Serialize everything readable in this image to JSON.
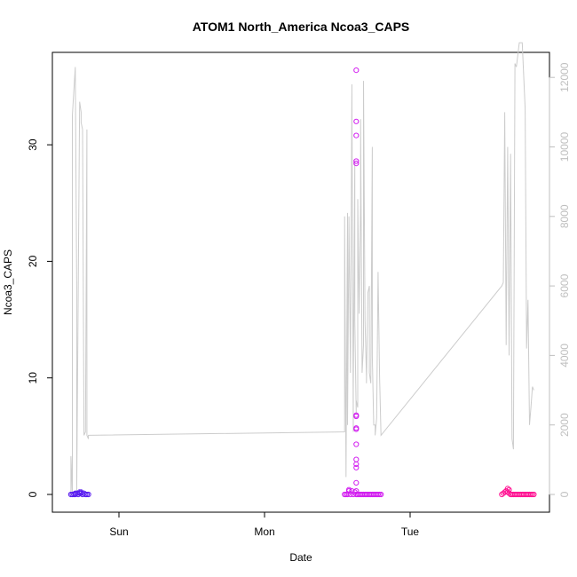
{
  "chart_data": {
    "type": "scatter",
    "title": "ATOM1 North_America Ncoa3_CAPS",
    "xlabel": "Date",
    "ylabel": "Ncoa3_CAPS",
    "x_ticks": [
      "Sun",
      "Mon",
      "Tue"
    ],
    "x_range_days": [
      -0.45,
      2.97
    ],
    "ylim_left": [
      -1.5,
      38.5
    ],
    "yticks_left": [
      0,
      10,
      20,
      30
    ],
    "ylim_right": [
      -420,
      12850
    ],
    "yticks_right": [
      0,
      2000,
      4000,
      6000,
      8000,
      10000,
      12000
    ],
    "grid": false,
    "legend": "none",
    "colors": {
      "line": "#cccccc",
      "right_axis": "#bfbfbf",
      "cluster1": "#5a1ef0",
      "cluster2": "#d21ef0",
      "cluster3": "#ff1493"
    },
    "series": [
      {
        "kind": "secondary_line",
        "axis": "right",
        "x": [
          -0.33,
          -0.33,
          -0.32,
          -0.32,
          -0.3,
          -0.29,
          -0.29,
          -0.27,
          -0.26,
          -0.26,
          -0.25,
          -0.24,
          -0.23,
          -0.22,
          -0.22,
          -0.21,
          -0.21,
          1.55,
          1.55,
          1.56,
          1.57,
          1.57,
          1.58,
          1.58,
          1.59,
          1.6,
          1.6,
          1.61,
          1.61,
          1.62,
          1.62,
          1.63,
          1.63,
          1.64,
          1.64,
          1.65,
          1.66,
          1.66,
          1.67,
          1.68,
          1.68,
          1.69,
          1.7,
          1.7,
          1.71,
          1.72,
          1.72,
          1.73,
          1.74,
          1.74,
          1.75,
          1.76,
          1.76,
          1.77,
          1.78,
          1.79,
          1.8,
          2.63,
          2.64,
          2.65,
          2.66,
          2.67,
          2.68,
          2.69,
          2.7,
          2.71,
          2.72,
          2.73,
          2.75,
          2.77,
          2.79,
          2.8,
          2.81,
          2.82,
          2.83,
          2.84,
          2.85
        ],
        "y": [
          0,
          1100,
          0,
          10900,
          12300,
          6000,
          0,
          11300,
          11000,
          10700,
          10500,
          1700,
          1800,
          10500,
          1700,
          1600,
          1700,
          1800,
          8000,
          500,
          8100,
          2000,
          7900,
          8000,
          3500,
          11600,
          11800,
          1800,
          3000,
          9600,
          5000,
          2300,
          2700,
          2500,
          8500,
          5200,
          8300,
          10800,
          3500,
          4300,
          11900,
          5000,
          3400,
          3200,
          5800,
          6000,
          3500,
          3200,
          10000,
          4000,
          2000,
          2000,
          1700,
          2200,
          6400,
          3400,
          1700,
          6000,
          6100,
          11000,
          4300,
          10000,
          4000,
          9800,
          1600,
          1300,
          12400,
          12300,
          13000,
          13000,
          11100,
          4200,
          5600,
          2000,
          2500,
          3100,
          3000
        ]
      },
      {
        "name": "cluster1",
        "x": [
          -0.33,
          -0.32,
          -0.31,
          -0.3,
          -0.29,
          -0.28,
          -0.27,
          -0.26,
          -0.25,
          -0.24,
          -0.23,
          -0.22,
          -0.21,
          -0.27,
          -0.26,
          -0.3
        ],
        "y": [
          0,
          0,
          0,
          0.1,
          0.1,
          0,
          0.2,
          0.1,
          0,
          0.1,
          0,
          0,
          0,
          0.1,
          0.2,
          0
        ]
      },
      {
        "name": "cluster2",
        "x": [
          1.55,
          1.56,
          1.57,
          1.58,
          1.59,
          1.6,
          1.61,
          1.62,
          1.63,
          1.64,
          1.65,
          1.66,
          1.67,
          1.68,
          1.69,
          1.7,
          1.71,
          1.72,
          1.73,
          1.74,
          1.75,
          1.76,
          1.77,
          1.78,
          1.79,
          1.8,
          1.58,
          1.63,
          1.63,
          1.63,
          1.63,
          1.63,
          1.63,
          1.63,
          1.63,
          1.63,
          1.63,
          1.63,
          1.63,
          1.63,
          1.63,
          1.63
        ],
        "y": [
          0,
          0,
          0,
          0.4,
          0,
          0.3,
          0,
          0.2,
          0,
          0,
          0,
          0,
          0,
          0,
          0,
          0,
          0,
          0,
          0,
          0,
          0,
          0,
          0,
          0,
          0,
          0,
          0.3,
          36.4,
          32,
          30.8,
          28.6,
          28.4,
          6.8,
          6.7,
          5.7,
          5.6,
          4.3,
          3.0,
          2.6,
          2.3,
          1.0,
          0.3
        ]
      },
      {
        "name": "cluster3",
        "x": [
          2.63,
          2.64,
          2.65,
          2.66,
          2.67,
          2.68,
          2.69,
          2.7,
          2.71,
          2.72,
          2.73,
          2.74,
          2.75,
          2.76,
          2.77,
          2.78,
          2.79,
          2.8,
          2.81,
          2.82,
          2.83,
          2.84,
          2.85,
          2.67,
          2.68
        ],
        "y": [
          0,
          0.1,
          0.2,
          0.3,
          0.2,
          0.1,
          0,
          0,
          0,
          0,
          0,
          0,
          0,
          0,
          0,
          0,
          0,
          0,
          0,
          0,
          0,
          0,
          0,
          0.5,
          0.4
        ]
      }
    ]
  }
}
